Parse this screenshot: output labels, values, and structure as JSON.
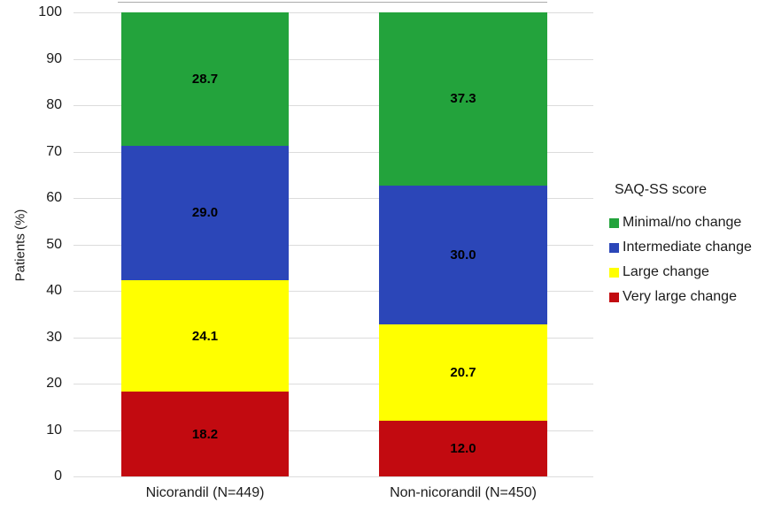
{
  "chart_data": {
    "type": "bar",
    "variant": "stacked-percent",
    "title": "",
    "ylabel": "Patients (%)",
    "ylim": [
      0,
      100
    ],
    "yticks": [
      0,
      10,
      20,
      30,
      40,
      50,
      60,
      70,
      80,
      90,
      100
    ],
    "grid": true,
    "legend_position": "right",
    "legend_title": "SAQ-SS score",
    "categories": [
      "Nicorandil (N=449)",
      "Non-nicorandil (N=450)"
    ],
    "series": [
      {
        "name": "Minimal/no change",
        "color": "#23a33c",
        "values": [
          28.7,
          37.3
        ]
      },
      {
        "name": "Intermediate change",
        "color": "#2b46b8",
        "values": [
          29.0,
          30.0
        ]
      },
      {
        "name": "Large change",
        "color": "#ffff00",
        "values": [
          24.1,
          20.7
        ]
      },
      {
        "name": "Very large change",
        "color": "#c20a10",
        "values": [
          18.2,
          12.0
        ]
      }
    ],
    "value_label_format": "one-decimal",
    "colors": {
      "gridline": "#dcdcdc",
      "text": "#1c1c1c",
      "value_label": "#000000"
    }
  }
}
